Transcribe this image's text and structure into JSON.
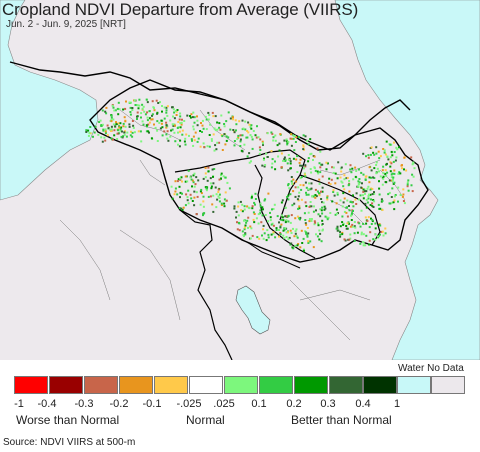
{
  "title": "Cropland NDVI Departure from Average (VIIRS)",
  "subtitle": "Jun. 2 - Jun. 9, 2025 [NRT]",
  "legend": {
    "water_label": "Water",
    "nodata_label": "No Data",
    "swatches": [
      {
        "color": "#ff0000"
      },
      {
        "color": "#990000"
      },
      {
        "color": "#c8654a"
      },
      {
        "color": "#e8951e"
      },
      {
        "color": "#ffc94a"
      },
      {
        "color": "#ffffff"
      },
      {
        "color": "#7df77d"
      },
      {
        "color": "#33cc44"
      },
      {
        "color": "#009900"
      },
      {
        "color": "#336633"
      },
      {
        "color": "#003300"
      },
      {
        "color": "#c8f8f8"
      },
      {
        "color": "#ece8ec"
      }
    ],
    "ticks": [
      "-1",
      "-0.4",
      "-0.3",
      "-0.2",
      "-0.1",
      "-.025",
      ".025",
      "0.1",
      "0.2",
      "0.3",
      "0.4",
      "1"
    ],
    "categories": {
      "worse": "Worse than Normal",
      "normal": "Normal",
      "better": "Better than Normal"
    }
  },
  "source": "Source: NDVI VIIRS at 500-m",
  "colors": {
    "land": "#ede9ed",
    "water": "#c9f8f8",
    "border": "#000000"
  }
}
